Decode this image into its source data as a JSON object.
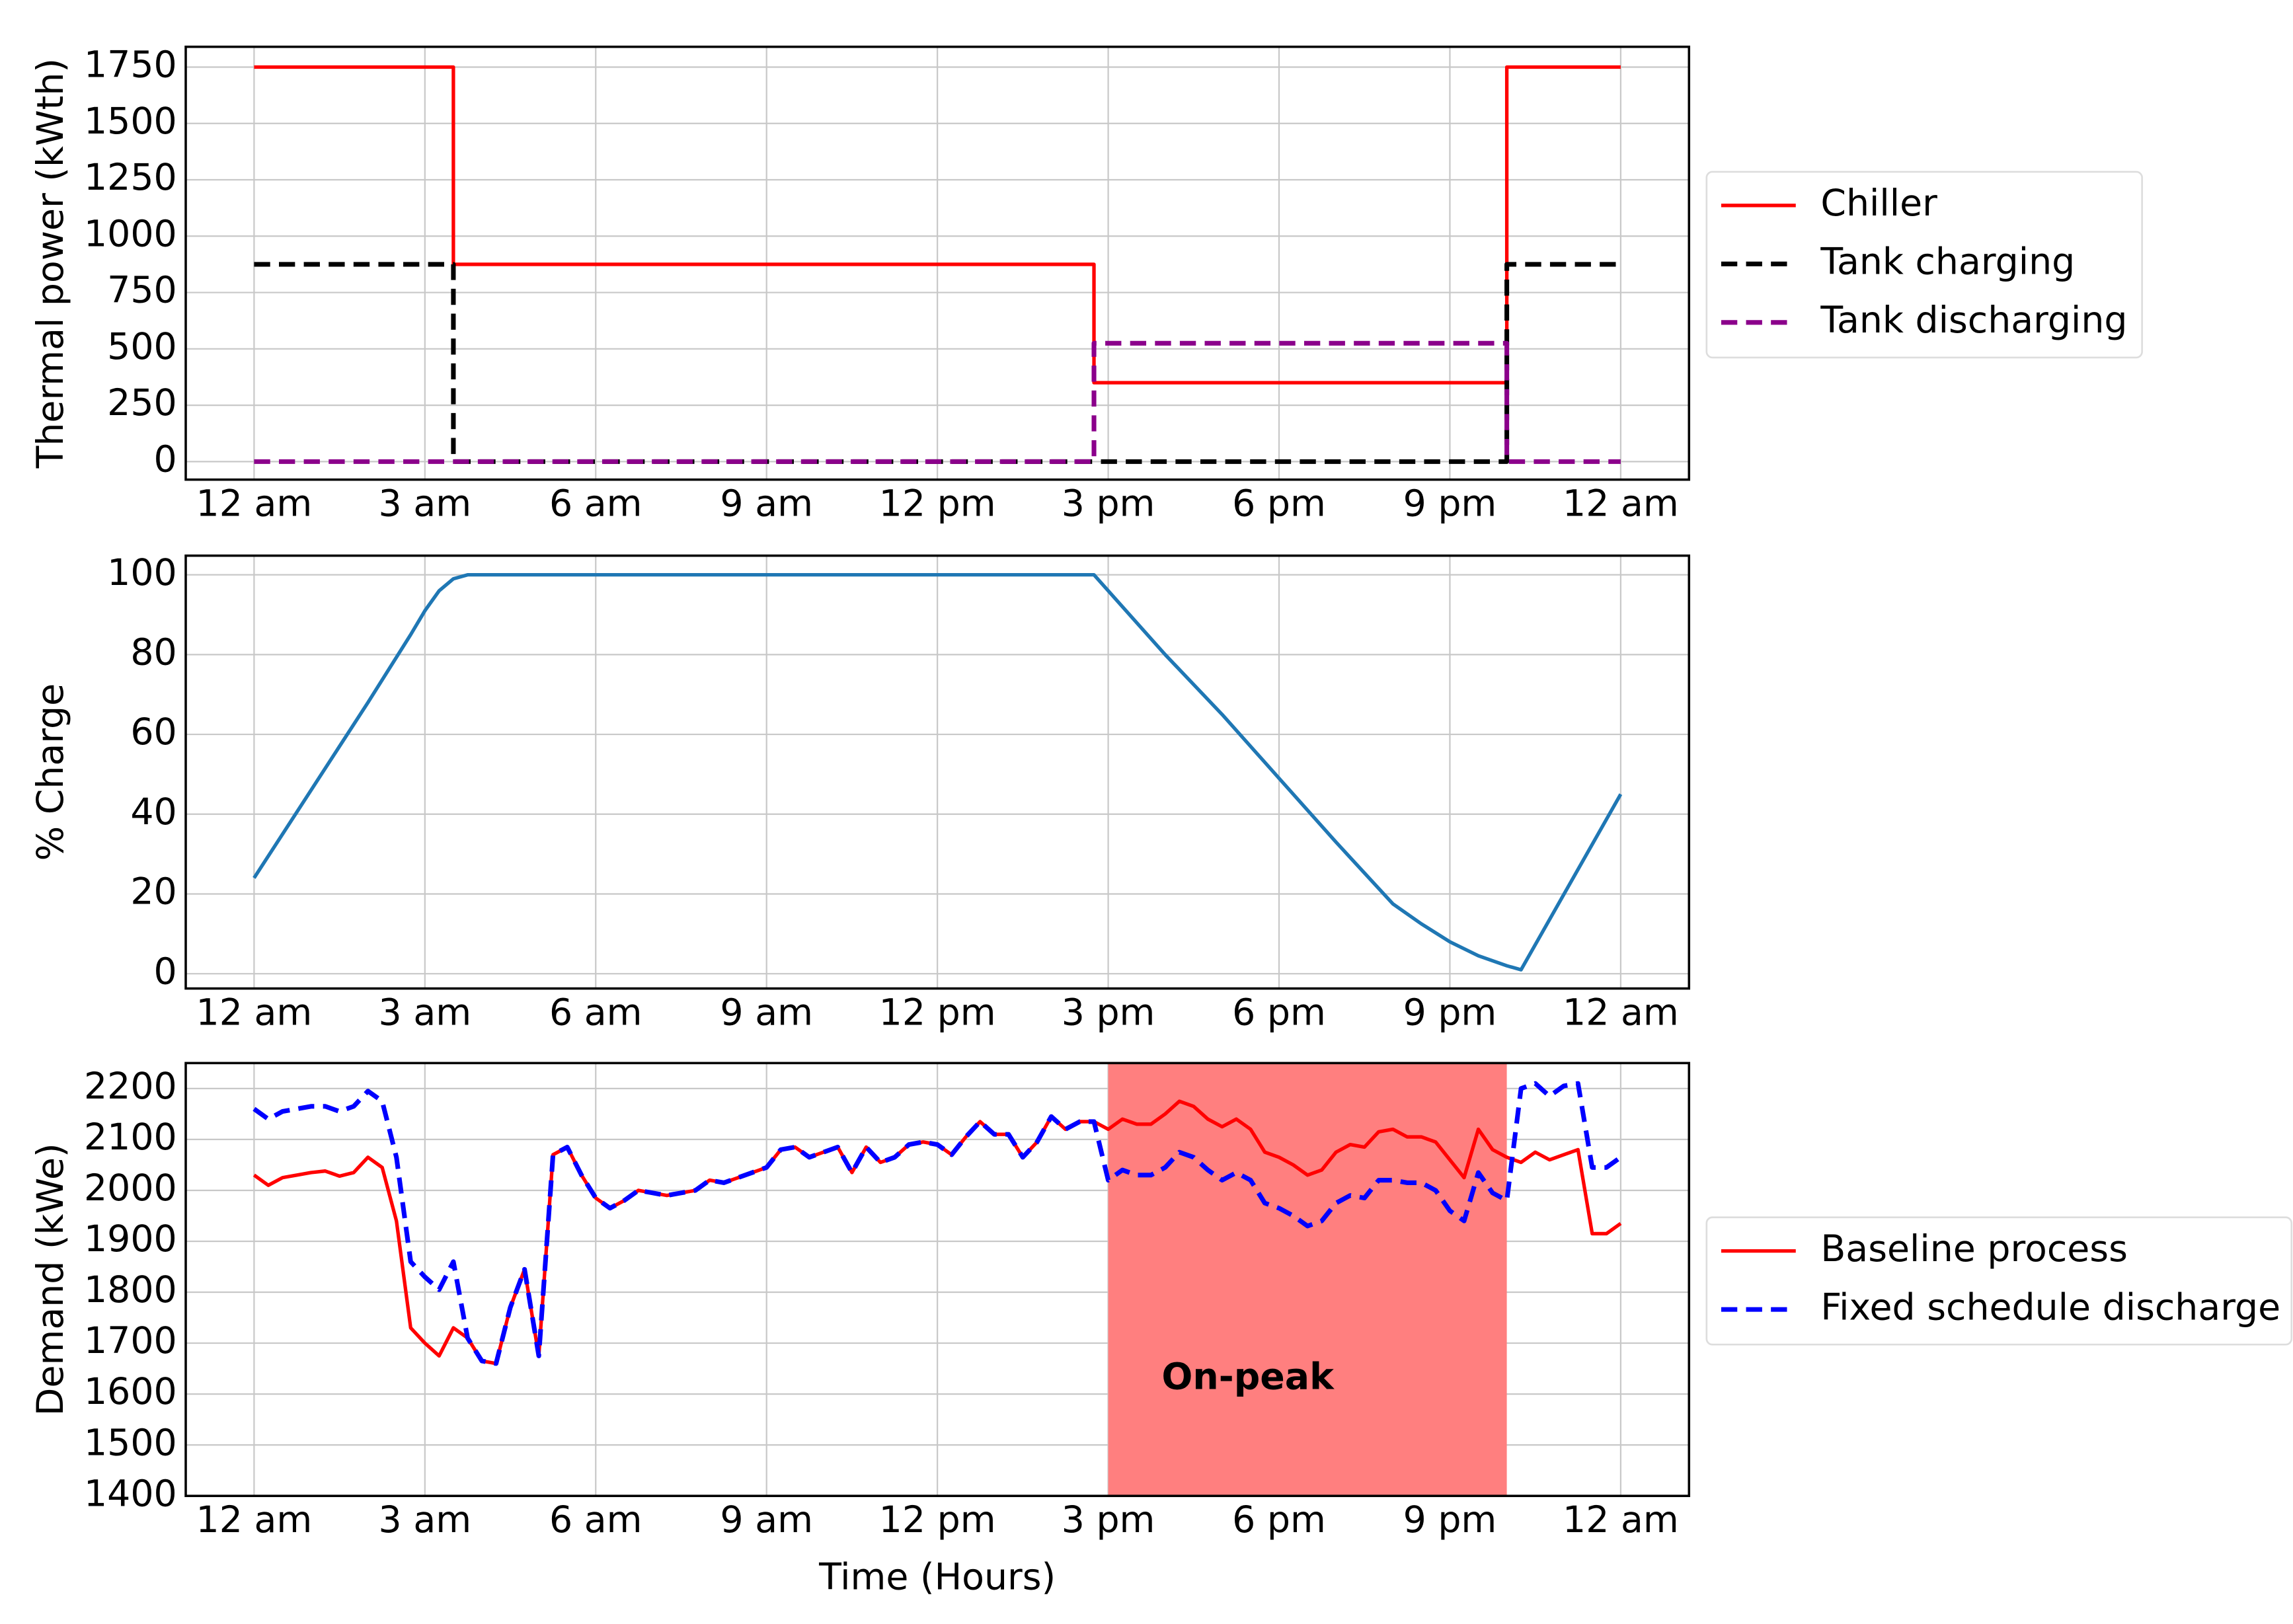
{
  "chart_data": [
    {
      "type": "line",
      "ylabel": "Thermal power (kWth)",
      "x": [
        0,
        3.5,
        3.5,
        14.75,
        14.75,
        22,
        22,
        24
      ],
      "series": [
        {
          "name": "Chiller",
          "color": "#ff0000",
          "linestyle": "solid",
          "values": [
            1750,
            1750,
            875,
            875,
            350,
            350,
            1750,
            1750
          ]
        },
        {
          "name": "Tank charging",
          "color": "#000000",
          "linestyle": "dashed",
          "values": [
            875,
            875,
            0,
            0,
            0,
            0,
            875,
            875
          ]
        },
        {
          "name": "Tank discharging",
          "color": "#8b008b",
          "linestyle": "dashed",
          "values": [
            0,
            0,
            0,
            0,
            525,
            525,
            0,
            0
          ]
        }
      ],
      "xlim": [
        -1.2,
        25.2
      ],
      "ylim": [
        -80,
        1840
      ],
      "xticks": [
        {
          "value": 0,
          "label": "12 am"
        },
        {
          "value": 3,
          "label": "3 am"
        },
        {
          "value": 6,
          "label": "6 am"
        },
        {
          "value": 9,
          "label": "9 am"
        },
        {
          "value": 12,
          "label": "12 pm"
        },
        {
          "value": 15,
          "label": "3 pm"
        },
        {
          "value": 18,
          "label": "6 pm"
        },
        {
          "value": 21,
          "label": "9 pm"
        },
        {
          "value": 24,
          "label": "12 am"
        }
      ],
      "yticks": [
        0,
        250,
        500,
        750,
        1000,
        1250,
        1500,
        1750
      ],
      "grid": true,
      "legend": "outside right"
    },
    {
      "type": "line",
      "ylabel": "% Charge",
      "x": [
        0,
        1,
        2,
        2.75,
        3,
        3.25,
        3.5,
        3.75,
        14.75,
        16,
        17,
        18,
        19,
        20,
        20.5,
        21,
        21.5,
        22,
        22.25,
        24
      ],
      "series": [
        {
          "color": "#1f77b4",
          "linestyle": "solid",
          "values": [
            24,
            46,
            68,
            85,
            91,
            96,
            99,
            100,
            100,
            80,
            65,
            49,
            33,
            17.5,
            12.5,
            8,
            4.5,
            2,
            1,
            45
          ]
        }
      ],
      "xlim": [
        -1.2,
        25.2
      ],
      "ylim": [
        -3.7,
        104.8
      ],
      "xticks": [
        {
          "value": 0,
          "label": "12 am"
        },
        {
          "value": 3,
          "label": "3 am"
        },
        {
          "value": 6,
          "label": "6 am"
        },
        {
          "value": 9,
          "label": "9 am"
        },
        {
          "value": 12,
          "label": "12 pm"
        },
        {
          "value": 15,
          "label": "3 pm"
        },
        {
          "value": 18,
          "label": "6 pm"
        },
        {
          "value": 21,
          "label": "9 pm"
        },
        {
          "value": 24,
          "label": "12 am"
        }
      ],
      "yticks": [
        0,
        20,
        40,
        60,
        80,
        100
      ],
      "grid": true
    },
    {
      "type": "line",
      "ylabel": "Demand (kWe)",
      "xlabel": "Time (Hours)",
      "x": [
        0,
        0.25,
        0.5,
        0.75,
        1,
        1.25,
        1.5,
        1.75,
        2,
        2.25,
        2.5,
        2.75,
        3,
        3.25,
        3.5,
        3.75,
        4,
        4.25,
        4.5,
        4.75,
        5,
        5.25,
        5.5,
        5.75,
        6,
        6.25,
        6.5,
        6.75,
        7,
        7.25,
        7.5,
        7.75,
        8,
        8.25,
        8.5,
        8.75,
        9,
        9.25,
        9.5,
        9.75,
        10,
        10.25,
        10.5,
        10.75,
        11,
        11.25,
        11.5,
        11.75,
        12,
        12.25,
        12.5,
        12.75,
        13,
        13.25,
        13.5,
        13.75,
        14,
        14.25,
        14.5,
        14.75,
        15,
        15.25,
        15.5,
        15.75,
        16,
        16.25,
        16.5,
        16.75,
        17,
        17.25,
        17.5,
        17.75,
        18,
        18.25,
        18.5,
        18.75,
        19,
        19.25,
        19.5,
        19.75,
        20,
        20.25,
        20.5,
        20.75,
        21,
        21.25,
        21.5,
        21.75,
        22,
        22.25,
        22.5,
        22.75,
        23,
        23.25,
        23.5,
        23.75,
        24
      ],
      "series": [
        {
          "name": "Baseline process",
          "color": "#ff0000",
          "linestyle": "solid",
          "values": [
            2030,
            2010,
            2025,
            2030,
            2035,
            2038,
            2028,
            2035,
            2065,
            2045,
            1940,
            1730,
            1700,
            1675,
            1730,
            1710,
            1665,
            1660,
            1770,
            1845,
            1675,
            2070,
            2085,
            2030,
            1985,
            1965,
            1980,
            2000,
            1995,
            1990,
            1995,
            2000,
            2020,
            2015,
            2025,
            2035,
            2045,
            2080,
            2085,
            2065,
            2075,
            2085,
            2035,
            2085,
            2055,
            2065,
            2090,
            2095,
            2090,
            2070,
            2105,
            2135,
            2110,
            2110,
            2065,
            2095,
            2145,
            2120,
            2135,
            2135,
            2120,
            2140,
            2130,
            2130,
            2150,
            2175,
            2165,
            2140,
            2125,
            2140,
            2120,
            2075,
            2065,
            2050,
            2030,
            2040,
            2075,
            2090,
            2085,
            2115,
            2120,
            2105,
            2105,
            2095,
            2060,
            2025,
            2120,
            2080,
            2065,
            2055,
            2075,
            2060,
            2070,
            2080,
            1915,
            1915,
            1935
          ]
        },
        {
          "name": "Fixed schedule discharge",
          "color": "#0000ff",
          "linestyle": "dashed",
          "values": [
            2160,
            2140,
            2155,
            2160,
            2165,
            2165,
            2155,
            2165,
            2195,
            2175,
            2065,
            1860,
            1830,
            1805,
            1860,
            1710,
            1665,
            1660,
            1770,
            1845,
            1675,
            2070,
            2085,
            2030,
            1985,
            1965,
            1980,
            2000,
            1995,
            1990,
            1995,
            2000,
            2020,
            2015,
            2025,
            2035,
            2045,
            2080,
            2085,
            2065,
            2075,
            2085,
            2035,
            2085,
            2055,
            2065,
            2090,
            2095,
            2090,
            2070,
            2105,
            2135,
            2110,
            2110,
            2065,
            2095,
            2145,
            2120,
            2135,
            2135,
            2020,
            2040,
            2030,
            2030,
            2045,
            2075,
            2065,
            2040,
            2020,
            2035,
            2020,
            1975,
            1965,
            1950,
            1930,
            1940,
            1975,
            1990,
            1985,
            2020,
            2020,
            2015,
            2015,
            2000,
            1960,
            1940,
            2035,
            1995,
            1980,
            2200,
            2210,
            2185,
            2205,
            2210,
            2045,
            2045,
            2065
          ]
        }
      ],
      "span": {
        "from": 15,
        "to": 22,
        "color": "#ff7f7f"
      },
      "annotation": "On-peak",
      "xlim": [
        -1.2,
        25.2
      ],
      "ylim": [
        1400,
        2250
      ],
      "xticks": [
        {
          "value": 0,
          "label": "12 am"
        },
        {
          "value": 3,
          "label": "3 am"
        },
        {
          "value": 6,
          "label": "6 am"
        },
        {
          "value": 9,
          "label": "9 am"
        },
        {
          "value": 12,
          "label": "12 pm"
        },
        {
          "value": 15,
          "label": "3 pm"
        },
        {
          "value": 18,
          "label": "6 pm"
        },
        {
          "value": 21,
          "label": "9 pm"
        },
        {
          "value": 24,
          "label": "12 am"
        }
      ],
      "yticks": [
        1400,
        1500,
        1600,
        1700,
        1800,
        1900,
        2000,
        2100,
        2200
      ],
      "grid": true,
      "legend": "outside right"
    }
  ]
}
